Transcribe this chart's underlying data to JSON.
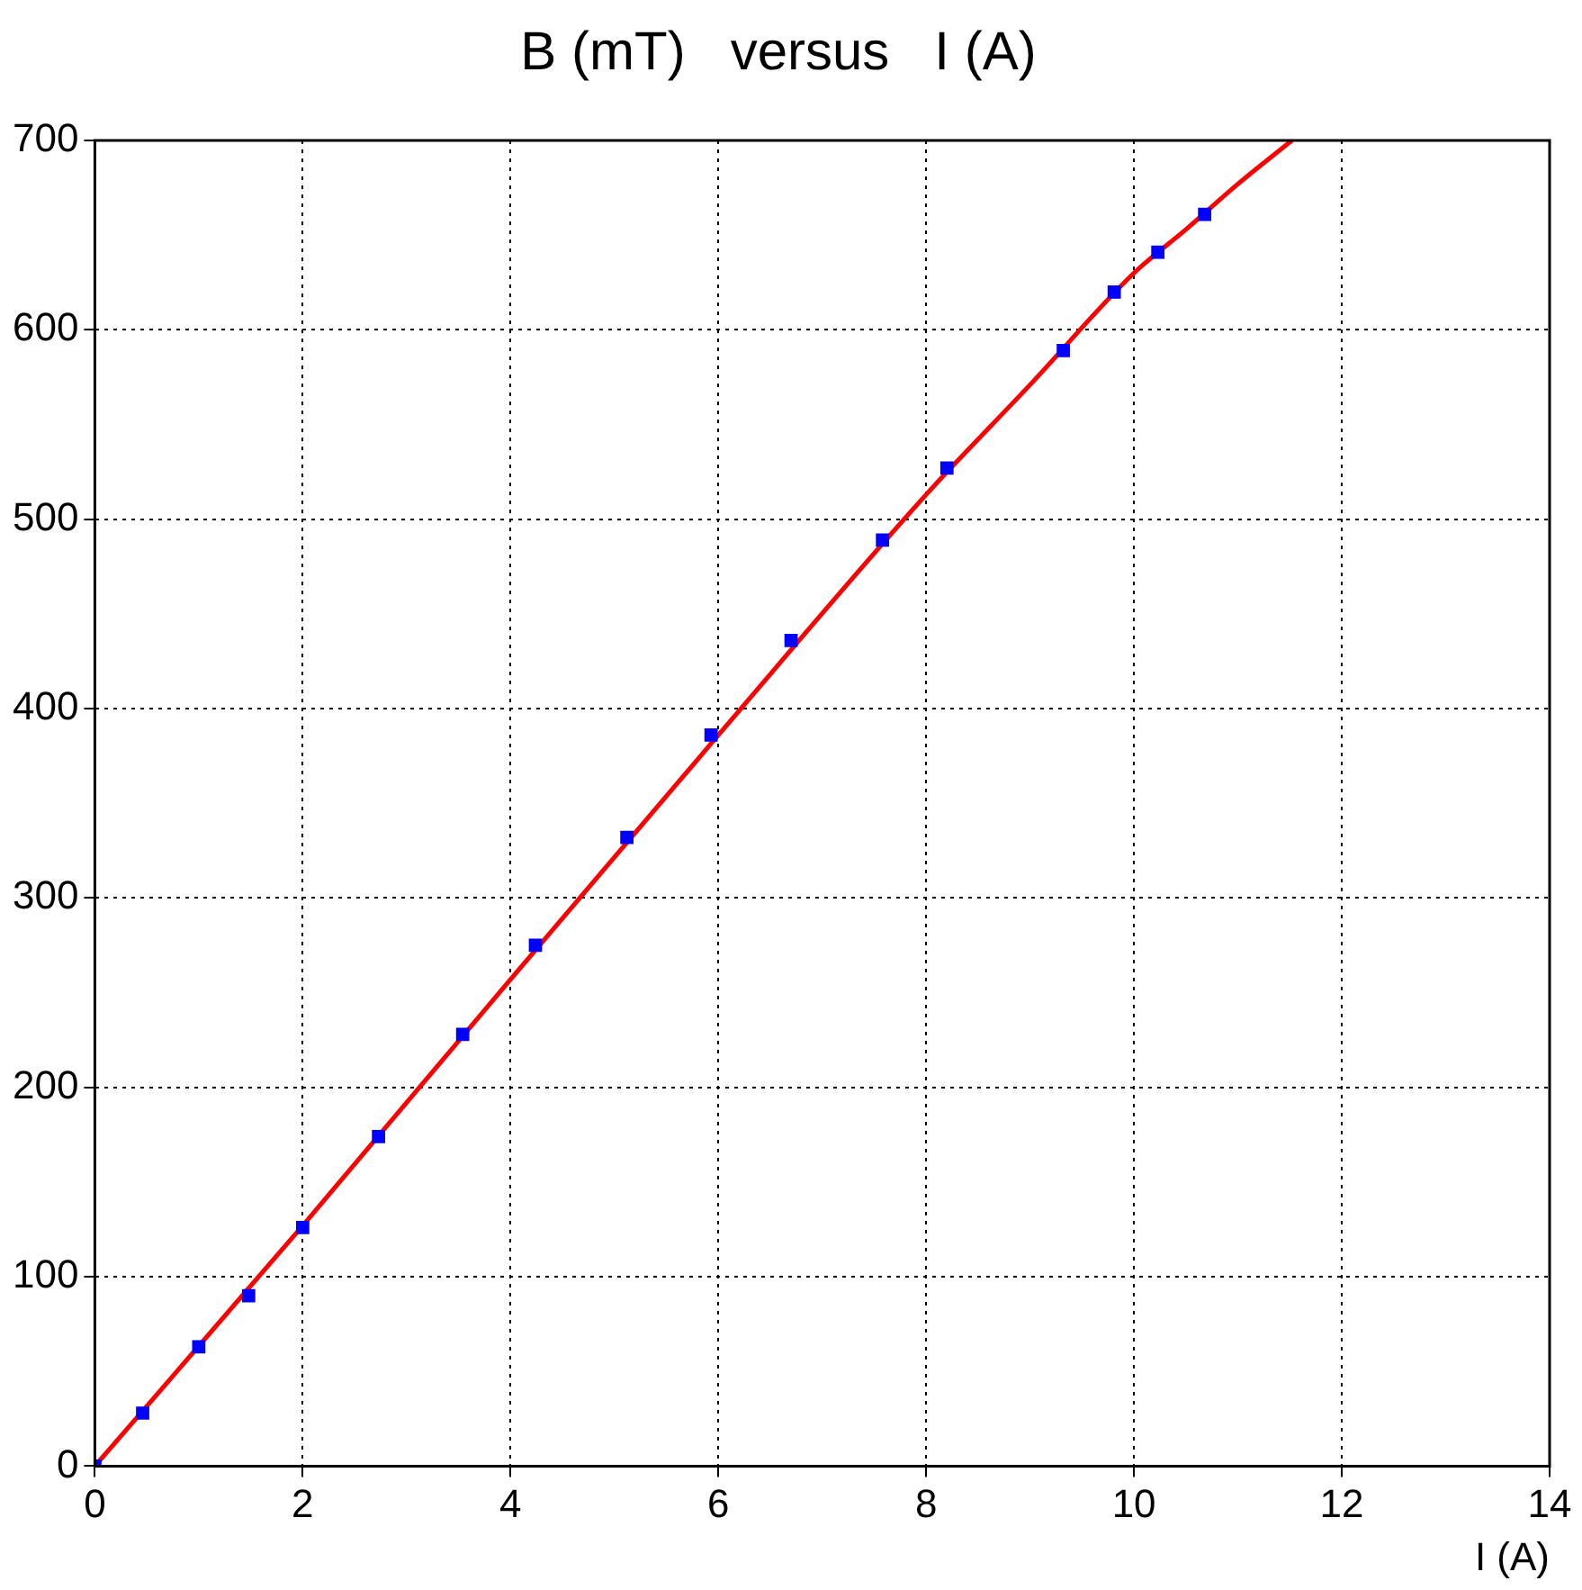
{
  "chart_data": {
    "type": "scatter",
    "title": "B (mT)   versus   I (A)",
    "xlabel": "I (A)",
    "xlim": [
      0,
      14
    ],
    "xticks": [
      0,
      2,
      4,
      6,
      8,
      10,
      12,
      14
    ],
    "ylim": [
      0,
      700
    ],
    "yticks": [
      0,
      100,
      200,
      300,
      400,
      500,
      600,
      700
    ],
    "grid": true,
    "legend": false,
    "marker": "square",
    "series": [
      {
        "type": "scatter",
        "color": "#0000ff",
        "x": [
          0,
          0.46,
          1.0,
          1.48,
          2.0,
          2.73,
          3.54,
          4.24,
          5.12,
          5.93,
          6.7,
          7.58,
          8.2,
          9.32,
          9.81,
          10.23,
          10.68
        ],
        "values": [
          0,
          28,
          63,
          90,
          126,
          174,
          228,
          275,
          332,
          386,
          436,
          489,
          527,
          589,
          620,
          641,
          661
        ]
      },
      {
        "type": "line",
        "color": "#ff0000",
        "line_style": "solid",
        "marker": "none",
        "x": [
          0,
          2,
          4,
          6,
          8,
          9,
          10,
          10.5,
          11,
          11.52
        ],
        "values": [
          0,
          127,
          257,
          386,
          513,
          571,
          630,
          653,
          677,
          700
        ]
      }
    ]
  }
}
